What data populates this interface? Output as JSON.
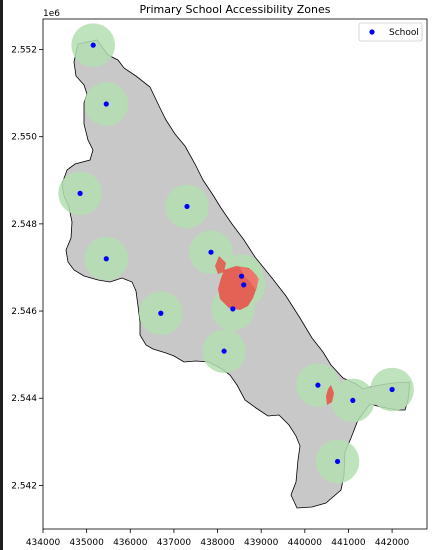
{
  "title": "Primary School Accessibility Zones",
  "y_offset_label": "1e6",
  "legend": {
    "label": "School",
    "marker_color": "#0000ff"
  },
  "colors": {
    "boundary_fill": "#c8c8c8",
    "zone_fill": "#b4deb0",
    "overlap_fill": "#e8544b",
    "overlap_light": "#f07a6e",
    "school": "#0000ff"
  },
  "chart_data": {
    "type": "scatter",
    "xlim": [
      434000,
      442800
    ],
    "ylim": [
      2541000,
      2552700
    ],
    "x_ticks": [
      434000,
      435000,
      436000,
      437000,
      438000,
      439000,
      440000,
      441000,
      442000
    ],
    "x_tick_labels": [
      "434000",
      "435000",
      "436000",
      "437000",
      "438000",
      "439000",
      "440000",
      "441000",
      "442000"
    ],
    "y_ticks": [
      2542000,
      2544000,
      2546000,
      2548000,
      2550000,
      2552000
    ],
    "y_tick_labels": [
      "2.542",
      "2.544",
      "2.546",
      "2.548",
      "2.550",
      "2.552"
    ],
    "series": [
      {
        "name": "School",
        "points": [
          [
            435150,
            2552100
          ],
          [
            435450,
            2550750
          ],
          [
            434850,
            2548700
          ],
          [
            437300,
            2548400
          ],
          [
            437850,
            2547350
          ],
          [
            435450,
            2547200
          ],
          [
            438550,
            2546800
          ],
          [
            438600,
            2546600
          ],
          [
            438350,
            2546050
          ],
          [
            436700,
            2545950
          ],
          [
            438150,
            2545080
          ],
          [
            440300,
            2544300
          ],
          [
            441100,
            2543950
          ],
          [
            442000,
            2544200
          ],
          [
            440750,
            2542550
          ]
        ]
      }
    ],
    "zone_radius": 500
  }
}
